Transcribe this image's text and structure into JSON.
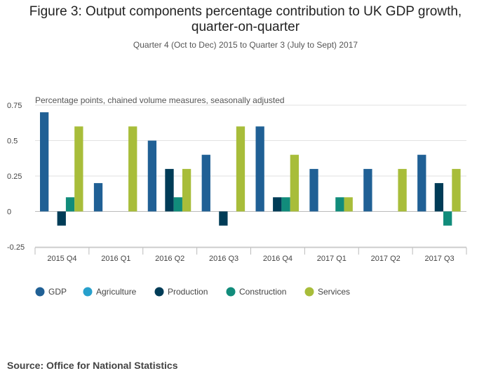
{
  "chart_data": {
    "type": "bar",
    "title_line1": "Figure 3: Output components percentage contribution to UK GDP growth,",
    "title_line2": "quarter-on-quarter",
    "subtitle": "Quarter 4 (Oct to Dec) 2015 to Quarter 3 (July to Sept) 2017",
    "ylabel": "Percentage points, chained volume measures, seasonally adjusted",
    "xlabel": "",
    "ylim": [
      -0.25,
      0.75
    ],
    "yticks": [
      -0.25,
      0,
      0.25,
      0.5,
      0.75
    ],
    "ytick_labels": [
      "-0.25",
      "0",
      "0.25",
      "0.5",
      "0.75"
    ],
    "grid": true,
    "legend_position": "bottom-left",
    "categories": [
      "2015 Q4",
      "2016 Q1",
      "2016 Q2",
      "2016 Q3",
      "2016 Q4",
      "2017 Q1",
      "2017 Q2",
      "2017 Q3"
    ],
    "series": [
      {
        "name": "GDP",
        "color": "#206095",
        "values": [
          0.7,
          0.2,
          0.5,
          0.4,
          0.6,
          0.3,
          0.3,
          0.4
        ]
      },
      {
        "name": "Agriculture",
        "color": "#27a0cc",
        "values": [
          0,
          0,
          0,
          0,
          0,
          0,
          0,
          0
        ]
      },
      {
        "name": "Production",
        "color": "#003c57",
        "values": [
          -0.1,
          0,
          0.3,
          -0.1,
          0.1,
          0,
          0,
          0.2
        ]
      },
      {
        "name": "Construction",
        "color": "#118c7b",
        "values": [
          0.1,
          0,
          0.1,
          0,
          0.1,
          0.1,
          0,
          -0.1
        ]
      },
      {
        "name": "Services",
        "color": "#a8bd3a",
        "values": [
          0.6,
          0.6,
          0.3,
          0.6,
          0.4,
          0.1,
          0.3,
          0.3
        ]
      }
    ]
  },
  "source": "Source: Office for National Statistics"
}
